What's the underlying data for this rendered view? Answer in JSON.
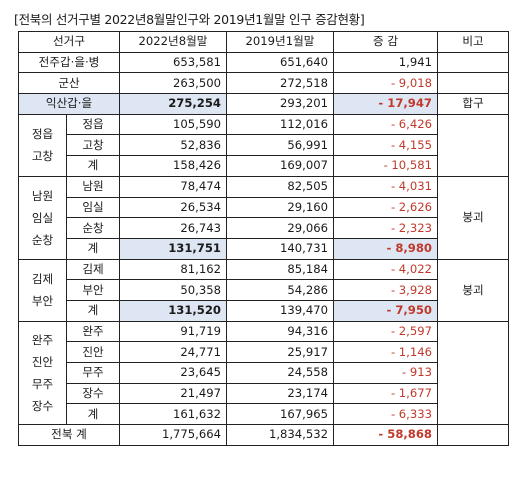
{
  "caption": "[전북의 선거구별 2022년8월말인구와 2019년1월말 인구 증감현황]",
  "headers": {
    "district": "선거구",
    "col2022": "2022년8월말",
    "col2019": "2019년1월말",
    "change": "증 감",
    "note": "비고"
  },
  "rows": {
    "jeonju": {
      "name": "전주갑·을·병",
      "v2022": "653,581",
      "v2019": "651,640",
      "change": "1,941"
    },
    "gunsan": {
      "name": "군산",
      "v2022": "263,500",
      "v2019": "272,518",
      "change": "- 9,018"
    },
    "iksan": {
      "name": "익산갑·을",
      "v2022": "275,254",
      "v2019": "293,201",
      "change": "- 17,947",
      "note": "합구"
    }
  },
  "groups": {
    "jeongeup": {
      "label_lines": [
        "정읍",
        "고창"
      ],
      "rows": [
        {
          "name": "정읍",
          "v2022": "105,590",
          "v2019": "112,016",
          "change": "- 6,426"
        },
        {
          "name": "고창",
          "v2022": "52,836",
          "v2019": "56,991",
          "change": "- 4,155"
        },
        {
          "name": "계",
          "v2022": "158,426",
          "v2019": "169,007",
          "change": "- 10,581"
        }
      ]
    },
    "namwon": {
      "label_lines": [
        "남원",
        "임실",
        "순창"
      ],
      "note": "붕괴",
      "rows": [
        {
          "name": "남원",
          "v2022": "78,474",
          "v2019": "82,505",
          "change": "- 4,031"
        },
        {
          "name": "임실",
          "v2022": "26,534",
          "v2019": "29,160",
          "change": "- 2,626"
        },
        {
          "name": "순창",
          "v2022": "26,743",
          "v2019": "29,066",
          "change": "- 2,323"
        },
        {
          "name": "계",
          "v2022": "131,751",
          "v2019": "140,731",
          "change": "- 8,980"
        }
      ]
    },
    "gimje": {
      "label_lines": [
        "김제",
        "부안"
      ],
      "note": "붕괴",
      "rows": [
        {
          "name": "김제",
          "v2022": "81,162",
          "v2019": "85,184",
          "change": "- 4,022"
        },
        {
          "name": "부안",
          "v2022": "50,358",
          "v2019": "54,286",
          "change": "- 3,928"
        },
        {
          "name": "계",
          "v2022": "131,520",
          "v2019": "139,470",
          "change": "- 7,950"
        }
      ]
    },
    "wanju": {
      "label_lines": [
        "완주",
        "진안",
        "무주",
        "장수"
      ],
      "rows": [
        {
          "name": "완주",
          "v2022": "91,719",
          "v2019": "94,316",
          "change": "- 2,597"
        },
        {
          "name": "진안",
          "v2022": "24,771",
          "v2019": "25,917",
          "change": "- 1,146"
        },
        {
          "name": "무주",
          "v2022": "23,645",
          "v2019": "24,558",
          "change": "- 913"
        },
        {
          "name": "장수",
          "v2022": "21,497",
          "v2019": "23,174",
          "change": "- 1,677"
        },
        {
          "name": "계",
          "v2022": "161,632",
          "v2019": "167,965",
          "change": "- 6,333"
        }
      ]
    }
  },
  "total": {
    "name": "전북 계",
    "v2022": "1,775,664",
    "v2019": "1,834,532",
    "change": "- 58,868"
  },
  "colors": {
    "negative": "#c0392b",
    "highlight": "#dde6f2",
    "border": "#222222"
  }
}
